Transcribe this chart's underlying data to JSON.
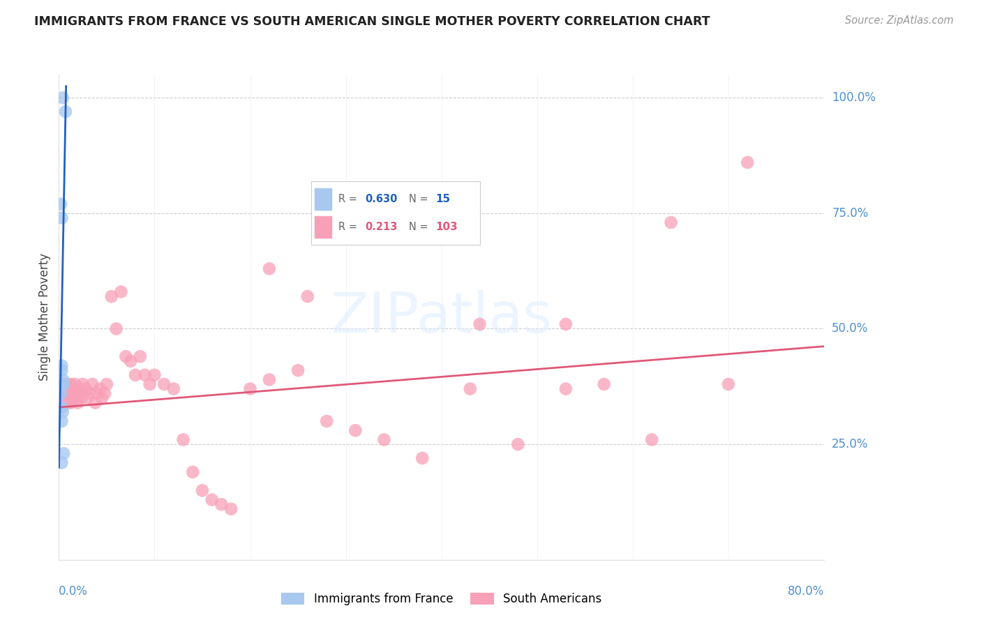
{
  "title": "IMMIGRANTS FROM FRANCE VS SOUTH AMERICAN SINGLE MOTHER POVERTY CORRELATION CHART",
  "source": "Source: ZipAtlas.com",
  "ylabel": "Single Mother Poverty",
  "legend_blue_r": "0.630",
  "legend_blue_n": "15",
  "legend_pink_r": "0.213",
  "legend_pink_n": "103",
  "legend_label_blue": "Immigrants from France",
  "legend_label_pink": "South Americans",
  "blue_color": "#a8c8f0",
  "blue_line_color": "#2060c0",
  "pink_color": "#f8a0b8",
  "pink_line_color": "#e05878",
  "background_color": "#ffffff",
  "grid_color": "#cccccc",
  "axis_label_color": "#5090d0",
  "title_color": "#222222",
  "xlim": [
    0.0,
    0.8
  ],
  "ylim": [
    0.0,
    1.05
  ],
  "right_ytick_labels": [
    "100.0%",
    "75.0%",
    "50.0%",
    "25.0%"
  ],
  "right_ytick_vals": [
    1.0,
    0.75,
    0.5,
    0.25
  ],
  "blue_points_x": [
    0.004,
    0.007,
    0.002,
    0.003,
    0.003,
    0.003,
    0.004,
    0.005,
    0.004,
    0.002,
    0.003,
    0.004,
    0.003,
    0.003,
    0.005
  ],
  "blue_points_y": [
    1.0,
    0.97,
    0.77,
    0.74,
    0.42,
    0.41,
    0.39,
    0.38,
    0.38,
    0.36,
    0.33,
    0.32,
    0.3,
    0.21,
    0.23
  ],
  "pink_points_x": [
    0.001,
    0.001,
    0.001,
    0.002,
    0.002,
    0.002,
    0.002,
    0.002,
    0.003,
    0.003,
    0.003,
    0.003,
    0.003,
    0.004,
    0.004,
    0.004,
    0.004,
    0.005,
    0.005,
    0.005,
    0.005,
    0.005,
    0.006,
    0.006,
    0.006,
    0.006,
    0.007,
    0.007,
    0.007,
    0.008,
    0.008,
    0.008,
    0.009,
    0.009,
    0.01,
    0.01,
    0.01,
    0.011,
    0.011,
    0.012,
    0.012,
    0.013,
    0.013,
    0.014,
    0.015,
    0.015,
    0.016,
    0.017,
    0.018,
    0.019,
    0.02,
    0.021,
    0.022,
    0.023,
    0.025,
    0.026,
    0.028,
    0.03,
    0.032,
    0.035,
    0.038,
    0.04,
    0.043,
    0.045,
    0.048,
    0.05,
    0.055,
    0.06,
    0.065,
    0.07,
    0.075,
    0.08,
    0.085,
    0.09,
    0.095,
    0.1,
    0.11,
    0.12,
    0.13,
    0.14,
    0.15,
    0.16,
    0.17,
    0.18,
    0.2,
    0.22,
    0.25,
    0.28,
    0.31,
    0.34,
    0.38,
    0.43,
    0.48,
    0.53,
    0.57,
    0.62,
    0.72,
    0.44,
    0.53,
    0.64,
    0.7,
    0.22,
    0.26
  ],
  "pink_points_y": [
    0.36,
    0.38,
    0.34,
    0.35,
    0.37,
    0.34,
    0.38,
    0.33,
    0.36,
    0.37,
    0.34,
    0.35,
    0.37,
    0.35,
    0.37,
    0.36,
    0.38,
    0.36,
    0.37,
    0.35,
    0.38,
    0.34,
    0.37,
    0.36,
    0.35,
    0.34,
    0.38,
    0.36,
    0.35,
    0.37,
    0.36,
    0.35,
    0.38,
    0.36,
    0.37,
    0.36,
    0.34,
    0.37,
    0.36,
    0.37,
    0.36,
    0.38,
    0.34,
    0.36,
    0.35,
    0.37,
    0.36,
    0.38,
    0.35,
    0.36,
    0.34,
    0.37,
    0.36,
    0.35,
    0.38,
    0.36,
    0.37,
    0.35,
    0.36,
    0.38,
    0.34,
    0.36,
    0.37,
    0.35,
    0.36,
    0.38,
    0.57,
    0.5,
    0.58,
    0.44,
    0.43,
    0.4,
    0.44,
    0.4,
    0.38,
    0.4,
    0.38,
    0.37,
    0.26,
    0.19,
    0.15,
    0.13,
    0.12,
    0.11,
    0.37,
    0.39,
    0.41,
    0.3,
    0.28,
    0.26,
    0.22,
    0.37,
    0.25,
    0.37,
    0.38,
    0.26,
    0.86,
    0.51,
    0.51,
    0.73,
    0.38,
    0.63,
    0.57
  ]
}
